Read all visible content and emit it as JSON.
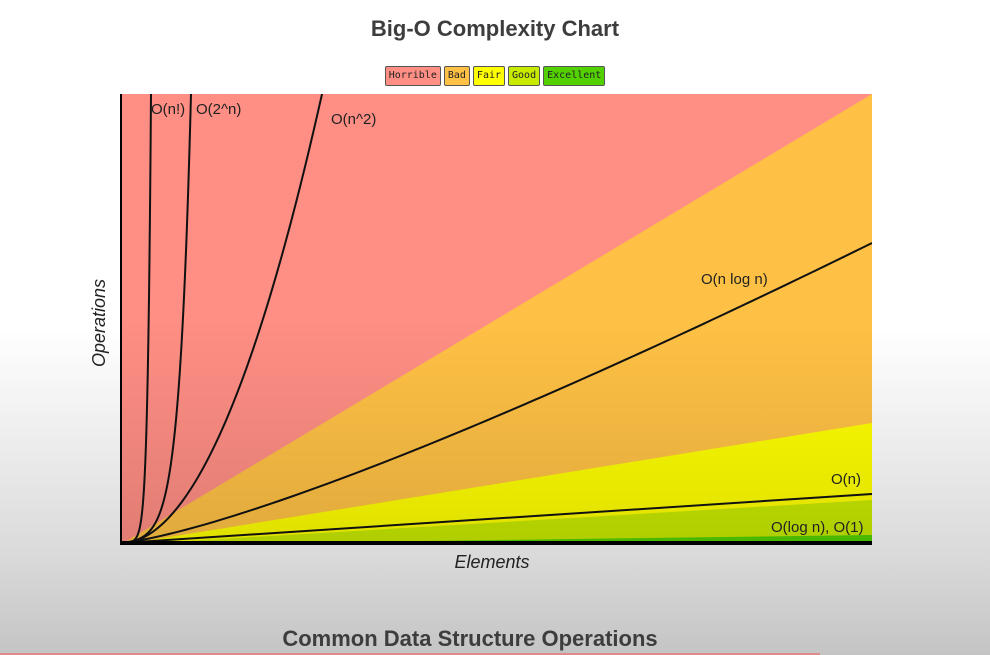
{
  "page": {
    "title": "Big-O Complexity Chart",
    "section_title": "Common Data Structure Operations"
  },
  "legend": [
    {
      "label": "Horrible",
      "color": "#ff8e84"
    },
    {
      "label": "Bad",
      "color": "#ffc145"
    },
    {
      "label": "Fair",
      "color": "#ffff00"
    },
    {
      "label": "Good",
      "color": "#c8ea00"
    },
    {
      "label": "Excellent",
      "color": "#53d000"
    }
  ],
  "chart_data": {
    "type": "line",
    "title": "Big-O Complexity Chart",
    "xlabel": "Elements",
    "ylabel": "Operations",
    "grid": false,
    "legend_position": "top-center",
    "series": [
      {
        "name": "O(n!)",
        "label": "O(n!)"
      },
      {
        "name": "O(2^n)",
        "label": "O(2^n)"
      },
      {
        "name": "O(n^2)",
        "label": "O(n^2)"
      },
      {
        "name": "O(n log n)",
        "label": "O(n log n)"
      },
      {
        "name": "O(n)",
        "label": "O(n)"
      },
      {
        "name": "O(log n), O(1)",
        "label": "O(log n), O(1)"
      }
    ],
    "regions": [
      {
        "rating": "Horrible",
        "color": "#ff8e84"
      },
      {
        "rating": "Bad",
        "color": "#ffc145"
      },
      {
        "rating": "Fair",
        "color": "#ffff00"
      },
      {
        "rating": "Good",
        "color": "#c8ea00"
      },
      {
        "rating": "Excellent",
        "color": "#53d000"
      }
    ]
  }
}
